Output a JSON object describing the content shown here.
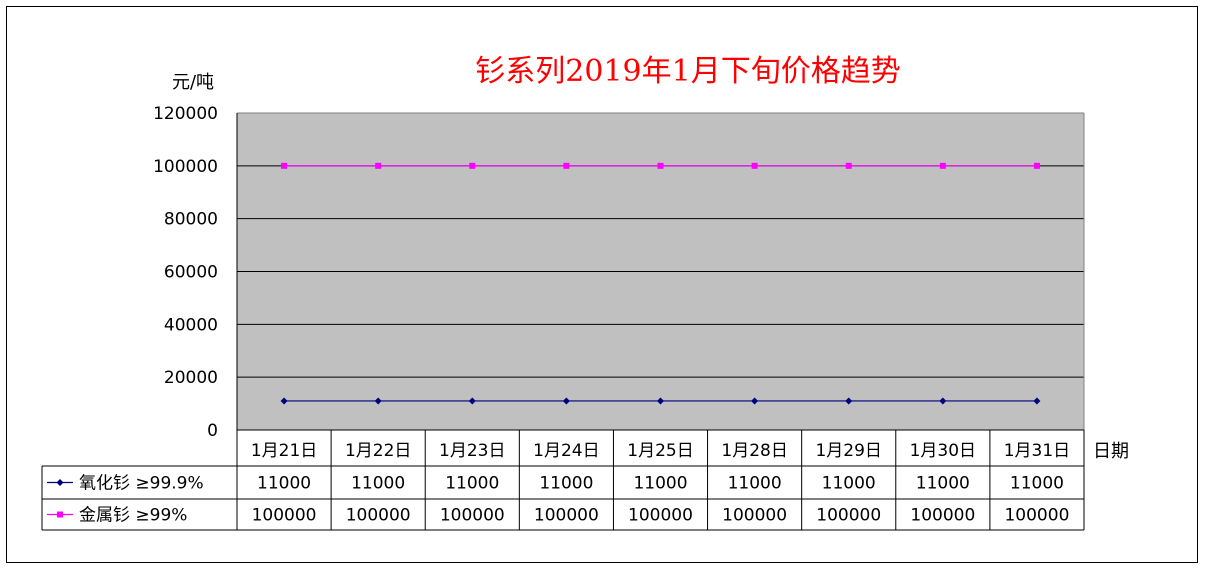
{
  "chart_data": {
    "type": "line",
    "title": "钐系列2019年1月下旬价格趋势",
    "ylabel": "元/吨",
    "xlabel": "日期",
    "ylim": [
      0,
      120000
    ],
    "yticks": [
      0,
      20000,
      40000,
      60000,
      80000,
      100000,
      120000
    ],
    "ytick_labels": [
      "0",
      "20000",
      "40000",
      "60000",
      "80000",
      "100000",
      "120000"
    ],
    "categories": [
      "1月21日",
      "1月22日",
      "1月23日",
      "1月24日",
      "1月25日",
      "1月28日",
      "1月29日",
      "1月30日",
      "1月31日"
    ],
    "grid": true,
    "plot_background": "#c0c0c0",
    "legend": "data-table-below",
    "series": [
      {
        "name": "氧化钐 ≥99.9%",
        "color": "#000080",
        "marker": "diamond",
        "values": [
          11000,
          11000,
          11000,
          11000,
          11000,
          11000,
          11000,
          11000,
          11000
        ],
        "value_labels": [
          "11000",
          "11000",
          "11000",
          "11000",
          "11000",
          "11000",
          "11000",
          "11000",
          "11000"
        ]
      },
      {
        "name": "金属钐 ≥99%",
        "color": "#ff00ff",
        "marker": "square",
        "values": [
          100000,
          100000,
          100000,
          100000,
          100000,
          100000,
          100000,
          100000,
          100000
        ],
        "value_labels": [
          "100000",
          "100000",
          "100000",
          "100000",
          "100000",
          "100000",
          "100000",
          "100000",
          "100000"
        ]
      }
    ]
  },
  "colors": {
    "title": "#ff0000",
    "grid": "#000000",
    "plot_background": "#c0c0c0"
  }
}
